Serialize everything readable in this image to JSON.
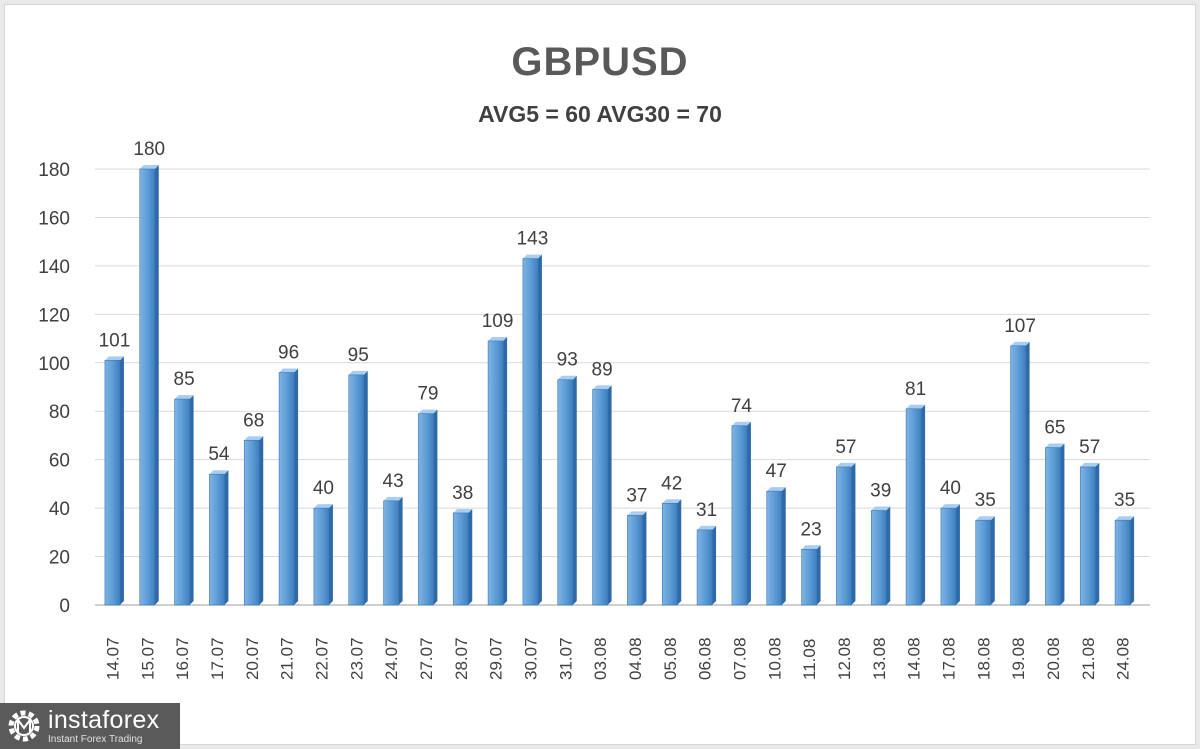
{
  "brand": {
    "name": "instaforex",
    "tagline": "Instant Forex Trading"
  },
  "chart_data": {
    "type": "bar",
    "title": "GBPUSD",
    "subtitle": "AVG5 = 60 AVG30 = 70",
    "xlabel": "",
    "ylabel": "",
    "ylim": [
      0,
      180
    ],
    "yticks": [
      0,
      20,
      40,
      60,
      80,
      100,
      120,
      140,
      160,
      180
    ],
    "grid": true,
    "bar_color": "#5b9bd5",
    "categories": [
      "14.07",
      "15.07",
      "16.07",
      "17.07",
      "20.07",
      "21.07",
      "22.07",
      "23.07",
      "24.07",
      "27.07",
      "28.07",
      "29.07",
      "30.07",
      "31.07",
      "03.08",
      "04.08",
      "05.08",
      "06.08",
      "07.08",
      "10.08",
      "11.08",
      "12.08",
      "13.08",
      "14.08",
      "17.08",
      "18.08",
      "19.08",
      "20.08",
      "21.08",
      "24.08"
    ],
    "values": [
      101,
      180,
      85,
      54,
      68,
      96,
      40,
      95,
      43,
      79,
      38,
      109,
      143,
      93,
      89,
      37,
      42,
      31,
      74,
      47,
      23,
      57,
      39,
      81,
      40,
      35,
      107,
      65,
      57,
      35
    ]
  }
}
